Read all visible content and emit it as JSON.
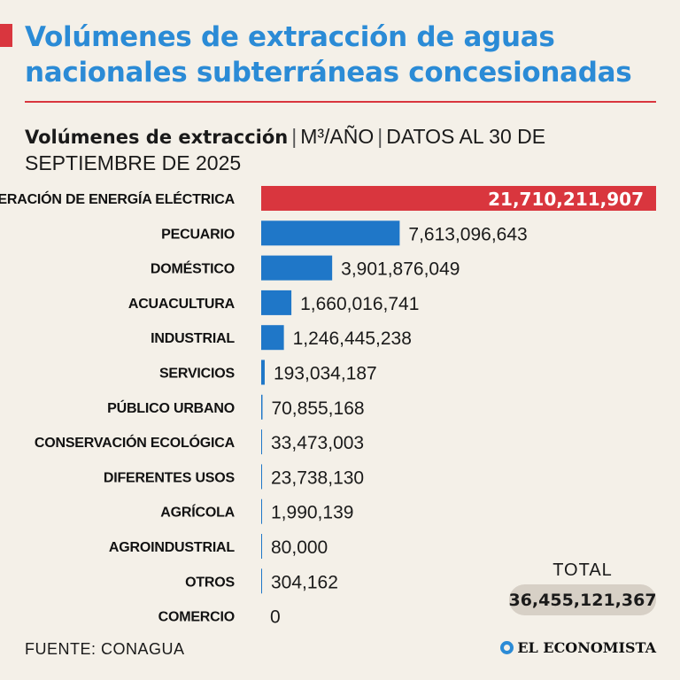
{
  "header": {
    "title": "Volúmenes de extracción de aguas nacionales subterráneas concesionadas",
    "subtitle_strong": "Volúmenes de extracción",
    "subtitle_unit": "M³/AÑO",
    "subtitle_date": "DATOS AL 30 DE SEPTIEMBRE DE 2025"
  },
  "colors": {
    "highlight": "#d9363e",
    "bar": "#1f77c8",
    "title": "#2b8bd6",
    "background": "#f4f0e8"
  },
  "chart_data": {
    "type": "bar",
    "orientation": "horizontal",
    "categories": [
      "GENERACIÓN DE ENERGÍA ELÉCTRICA",
      "PECUARIO",
      "DOMÉSTICO",
      "ACUACULTURA",
      "INDUSTRIAL",
      "SERVICIOS",
      "PÚBLICO URBANO",
      "CONSERVACIÓN ECOLÓGICA",
      "DIFERENTES USOS",
      "AGRÍCOLA",
      "AGROINDUSTRIAL",
      "OTROS",
      "COMERCIO"
    ],
    "values": [
      21710211907,
      7613096643,
      3901876049,
      1660016741,
      1246445238,
      193034187,
      70855168,
      33473003,
      23738130,
      1990139,
      80000,
      304162,
      0
    ],
    "value_labels": [
      "21,710,211,907",
      "7,613,096,643",
      "3,901,876,049",
      "1,660,016,741",
      "1,246,445,238",
      "193,034,187",
      "70,855,168",
      "33,473,003",
      "23,738,130",
      "1,990,139",
      "80,000",
      "304,162",
      "0"
    ],
    "highlight_index": 0,
    "title": "Volúmenes de extracción",
    "unit": "M³/AÑO",
    "xlim": [
      0,
      21710211907
    ]
  },
  "total": {
    "label": "TOTAL",
    "value": "36,455,121,367"
  },
  "footer": {
    "source": "FUENTE: CONAGUA",
    "brand": "EL ECONOMISTA",
    "brand_icon": "el-economista-logo-icon"
  }
}
